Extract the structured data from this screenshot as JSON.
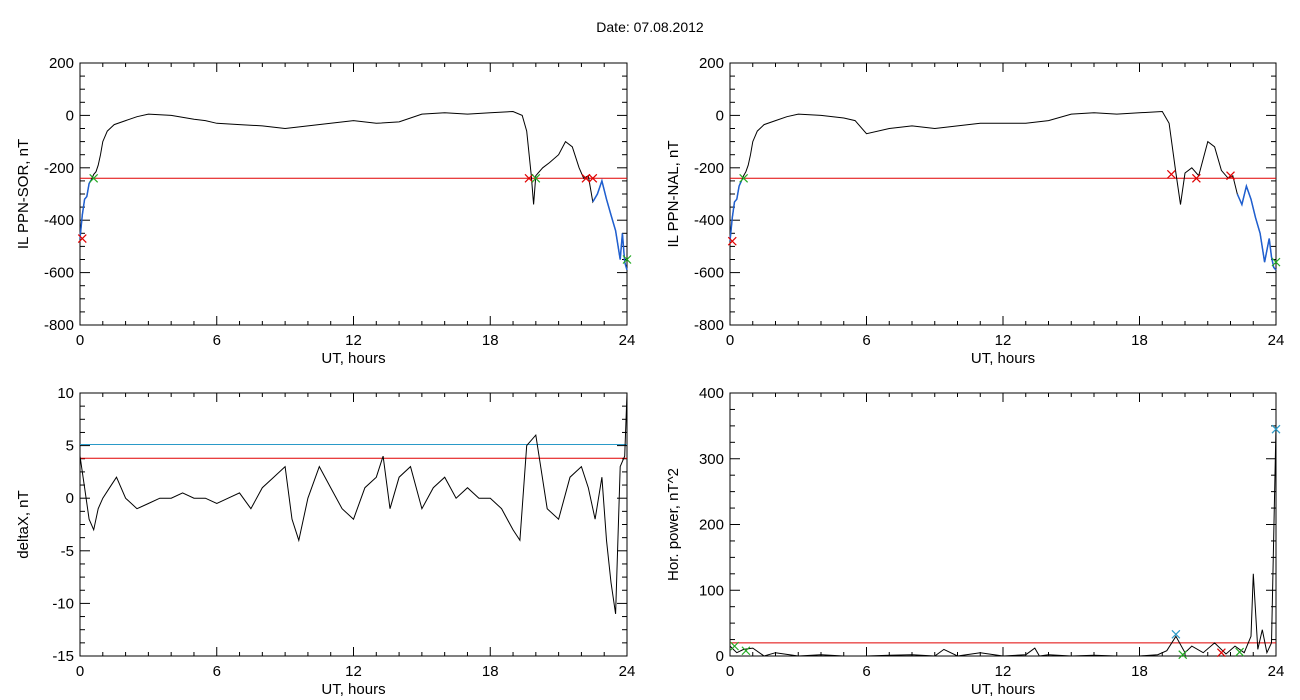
{
  "title": "Date:  07.08.2012",
  "colors": {
    "line": "#000000",
    "threshold": "#e00000",
    "threshold2": "#2a9ac8",
    "highlight": "#1f5fd0",
    "marker_red": "#e00000",
    "marker_green": "#22aa22",
    "marker_blue": "#2a9ac8"
  },
  "chart_data": [
    {
      "type": "line",
      "ylabel": "IL PPN-SOR, nT",
      "xlabel": "UT, hours",
      "xlim": [
        0,
        24
      ],
      "ylim": [
        -800,
        200
      ],
      "xticks": [
        0,
        6,
        12,
        18,
        24
      ],
      "yticks": [
        -800,
        -600,
        -400,
        -200,
        0,
        200
      ],
      "threshold": -240,
      "series": [
        {
          "x": [
            0,
            0.1,
            0.2,
            0.3,
            0.4,
            0.5,
            0.6,
            0.7,
            0.8,
            0.9,
            1.0,
            1.2,
            1.5,
            2.0,
            2.5,
            3.0,
            4.0,
            5.0,
            5.5,
            6.0,
            7.0,
            8.0,
            9.0,
            10.0,
            11.0,
            12.0,
            13.0,
            14.0,
            15.0,
            16.0,
            17.0,
            18.0,
            19.0,
            19.4,
            19.6,
            19.8,
            19.9,
            20.0,
            20.3,
            20.6,
            21.0,
            21.3,
            21.6,
            21.9,
            22.1,
            22.3,
            22.5,
            22.7,
            22.9,
            23.1,
            23.3,
            23.5,
            23.7,
            23.8,
            23.9,
            24.0
          ],
          "y": [
            -470,
            -380,
            -320,
            -310,
            -260,
            -245,
            -225,
            -215,
            -190,
            -150,
            -100,
            -60,
            -35,
            -20,
            -5,
            5,
            0,
            -15,
            -20,
            -30,
            -35,
            -40,
            -50,
            -40,
            -30,
            -20,
            -30,
            -25,
            5,
            10,
            5,
            10,
            15,
            0,
            -60,
            -230,
            -340,
            -230,
            -200,
            -180,
            -150,
            -100,
            -120,
            -200,
            -240,
            -230,
            -330,
            -300,
            -250,
            -320,
            -380,
            -440,
            -550,
            -450,
            -560,
            -590
          ]
        }
      ],
      "markers": [
        {
          "x": 0.1,
          "y": -470,
          "color": "red"
        },
        {
          "x": 0.6,
          "y": -240,
          "color": "green"
        },
        {
          "x": 19.7,
          "y": -240,
          "color": "red"
        },
        {
          "x": 20.0,
          "y": -240,
          "color": "green"
        },
        {
          "x": 22.2,
          "y": -240,
          "color": "red"
        },
        {
          "x": 22.5,
          "y": -240,
          "color": "red"
        },
        {
          "x": 24.0,
          "y": -550,
          "color": "green"
        }
      ]
    },
    {
      "type": "line",
      "ylabel": "IL PPN-NAL, nT",
      "xlabel": "UT, hours",
      "xlim": [
        0,
        24
      ],
      "ylim": [
        -800,
        200
      ],
      "xticks": [
        0,
        6,
        12,
        18,
        24
      ],
      "yticks": [
        -800,
        -600,
        -400,
        -200,
        0,
        200
      ],
      "threshold": -240,
      "series": [
        {
          "x": [
            0,
            0.1,
            0.2,
            0.3,
            0.4,
            0.5,
            0.6,
            0.7,
            0.8,
            0.9,
            1.0,
            1.2,
            1.5,
            2.0,
            2.5,
            3.0,
            4.0,
            5.0,
            5.5,
            6.0,
            7.0,
            8.0,
            9.0,
            10.0,
            11.0,
            12.0,
            13.0,
            14.0,
            15.0,
            16.0,
            17.0,
            18.0,
            19.0,
            19.3,
            19.6,
            19.8,
            20.0,
            20.3,
            20.6,
            21.0,
            21.3,
            21.6,
            21.9,
            22.1,
            22.3,
            22.5,
            22.7,
            22.9,
            23.1,
            23.3,
            23.5,
            23.7,
            23.8,
            23.9,
            24.0
          ],
          "y": [
            -480,
            -390,
            -330,
            -320,
            -270,
            -250,
            -230,
            -215,
            -190,
            -150,
            -100,
            -60,
            -35,
            -20,
            -5,
            5,
            0,
            -10,
            -20,
            -70,
            -50,
            -40,
            -50,
            -40,
            -30,
            -30,
            -30,
            -20,
            5,
            10,
            5,
            10,
            15,
            -30,
            -220,
            -340,
            -220,
            -200,
            -230,
            -100,
            -120,
            -210,
            -240,
            -230,
            -300,
            -340,
            -270,
            -320,
            -390,
            -450,
            -560,
            -470,
            -540,
            -580,
            -590
          ]
        }
      ],
      "markers": [
        {
          "x": 0.1,
          "y": -480,
          "color": "red"
        },
        {
          "x": 0.6,
          "y": -240,
          "color": "green"
        },
        {
          "x": 19.4,
          "y": -225,
          "color": "red"
        },
        {
          "x": 20.5,
          "y": -240,
          "color": "red"
        },
        {
          "x": 22.0,
          "y": -230,
          "color": "red"
        },
        {
          "x": 24.0,
          "y": -560,
          "color": "green"
        }
      ]
    },
    {
      "type": "line",
      "ylabel": "deltaX, nT",
      "xlabel": "UT, hours",
      "xlim": [
        0,
        24
      ],
      "ylim": [
        -15,
        10
      ],
      "xticks": [
        0,
        6,
        12,
        18,
        24
      ],
      "yticks": [
        -15,
        -10,
        -5,
        0,
        5,
        10
      ],
      "threshold": 3.8,
      "threshold2": 5.1,
      "series": [
        {
          "x": [
            0,
            0.2,
            0.4,
            0.6,
            0.8,
            1.0,
            1.3,
            1.6,
            2.0,
            2.5,
            3.0,
            3.5,
            4.0,
            4.5,
            5.0,
            5.5,
            6.0,
            6.5,
            7.0,
            7.5,
            8.0,
            8.5,
            9.0,
            9.3,
            9.6,
            10.0,
            10.5,
            11.0,
            11.5,
            12.0,
            12.5,
            13.0,
            13.3,
            13.6,
            14.0,
            14.5,
            15.0,
            15.5,
            16.0,
            16.5,
            17.0,
            17.5,
            18.0,
            18.5,
            19.0,
            19.3,
            19.6,
            20.0,
            20.5,
            21.0,
            21.5,
            22.0,
            22.3,
            22.6,
            22.9,
            23.1,
            23.3,
            23.5,
            23.7,
            23.9,
            24.0
          ],
          "y": [
            4,
            1,
            -2,
            -3,
            -1,
            0,
            1,
            2,
            0,
            -1,
            -0.5,
            0,
            0,
            0.5,
            0,
            0,
            -0.5,
            0,
            0.5,
            -1,
            1,
            2,
            3,
            -2,
            -4,
            0,
            3,
            1,
            -1,
            -2,
            1,
            2,
            4,
            -1,
            2,
            3,
            -1,
            1,
            2,
            0,
            1,
            0,
            0,
            -1,
            -3,
            -4,
            5,
            6,
            -1,
            -2,
            2,
            3,
            1,
            -2,
            2,
            -4,
            -8,
            -11,
            3,
            4,
            10
          ]
        }
      ],
      "markers": []
    },
    {
      "type": "line",
      "ylabel": "Hor. power, nT^2",
      "xlabel": "UT, hours",
      "xlim": [
        0,
        24
      ],
      "ylim": [
        0,
        400
      ],
      "xticks": [
        0,
        6,
        12,
        18,
        24
      ],
      "yticks": [
        0,
        100,
        200,
        300,
        400
      ],
      "threshold": 20,
      "series": [
        {
          "x": [
            0,
            0.3,
            0.6,
            1.0,
            1.5,
            2.0,
            3.0,
            4.0,
            5.0,
            6.0,
            7.0,
            8.0,
            9.0,
            9.4,
            10.0,
            11.0,
            12.0,
            13.0,
            13.4,
            13.6,
            14.0,
            15.0,
            16.0,
            17.0,
            18.0,
            18.8,
            19.2,
            19.6,
            20.0,
            20.3,
            20.8,
            21.3,
            21.8,
            22.2,
            22.6,
            22.9,
            23.0,
            23.2,
            23.4,
            23.6,
            23.8,
            24.0
          ],
          "y": [
            15,
            5,
            10,
            12,
            0,
            5,
            0,
            2,
            0,
            0,
            1,
            2,
            0,
            10,
            0,
            5,
            0,
            2,
            12,
            0,
            2,
            0,
            1,
            0,
            0,
            2,
            8,
            30,
            5,
            15,
            5,
            20,
            3,
            15,
            5,
            30,
            125,
            10,
            40,
            5,
            20,
            350
          ]
        }
      ],
      "markers": [
        {
          "x": 0.2,
          "y": 15,
          "color": "green"
        },
        {
          "x": 0.7,
          "y": 8,
          "color": "green"
        },
        {
          "x": 19.6,
          "y": 33,
          "color": "blue"
        },
        {
          "x": 19.9,
          "y": 2,
          "color": "green"
        },
        {
          "x": 21.6,
          "y": 5,
          "color": "red"
        },
        {
          "x": 22.4,
          "y": 6,
          "color": "green"
        },
        {
          "x": 24.0,
          "y": 345,
          "color": "blue"
        }
      ]
    }
  ]
}
